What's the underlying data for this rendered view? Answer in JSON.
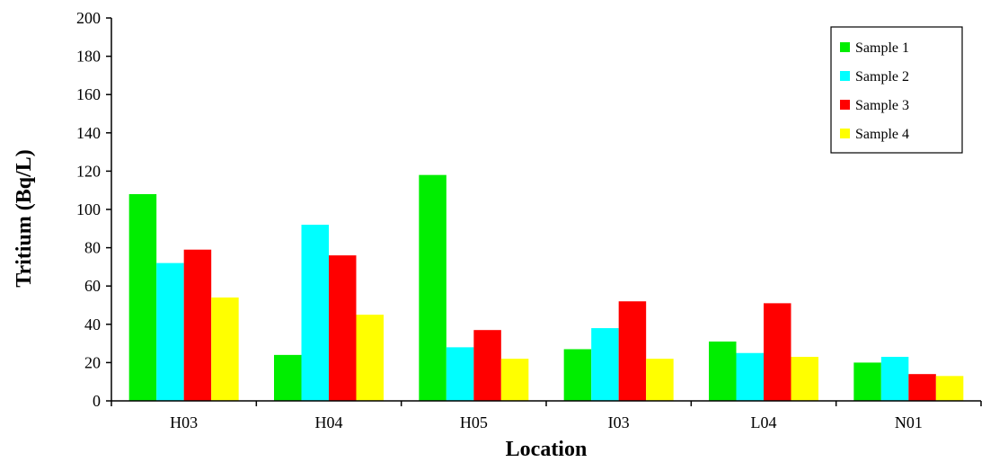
{
  "chart_data": {
    "type": "bar",
    "title": "",
    "xlabel": "Location",
    "ylabel": "Tritium (Bq/L)",
    "ylim": [
      0,
      200
    ],
    "yticks": [
      0,
      20,
      40,
      60,
      80,
      100,
      120,
      140,
      160,
      180,
      200
    ],
    "grid": false,
    "legend_position": "top-right",
    "categories": [
      "H03",
      "H04",
      "H05",
      "I03",
      "L04",
      "N01"
    ],
    "series": [
      {
        "name": "Sample 1",
        "color": "#00ee00",
        "values": [
          108,
          24,
          118,
          27,
          31,
          20
        ]
      },
      {
        "name": "Sample 2",
        "color": "#00ffff",
        "values": [
          72,
          92,
          28,
          38,
          25,
          23
        ]
      },
      {
        "name": "Sample 3",
        "color": "#ff0000",
        "values": [
          79,
          76,
          37,
          52,
          51,
          14
        ]
      },
      {
        "name": "Sample 4",
        "color": "#ffff00",
        "values": [
          54,
          45,
          22,
          22,
          23,
          13
        ]
      }
    ]
  }
}
